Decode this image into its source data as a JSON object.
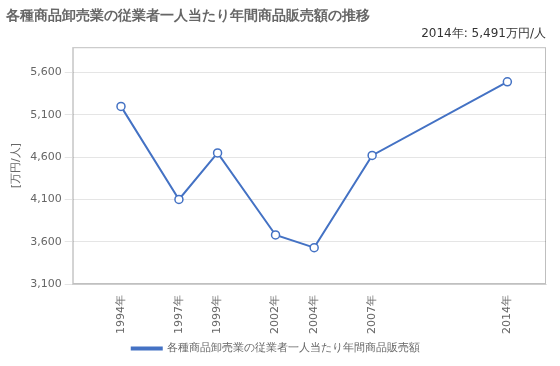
{
  "chart_data": {
    "type": "line",
    "title": "各種商品卸売業の従業者一人当たり年間商品販売額の推移",
    "annotation": "2014年: 5,491万円/人",
    "ylabel": "[万円/人]",
    "x": [
      1994,
      1997,
      1999,
      2002,
      2004,
      2007,
      2014
    ],
    "series": [
      {
        "name": "各種商品卸売業の従業者一人当たり年間商品販売額",
        "color": "#4472C4",
        "marker": "circle",
        "line_style": "solid",
        "values": [
          5200,
          4100,
          4650,
          3680,
          3530,
          4620,
          5491
        ]
      }
    ],
    "xlim": [
      1991.5,
      2016
    ],
    "xticks": [
      {
        "value": 1994,
        "label": "1994年"
      },
      {
        "value": 1997,
        "label": "1997年"
      },
      {
        "value": 1999,
        "label": "1999年"
      },
      {
        "value": 2002,
        "label": "2002年"
      },
      {
        "value": 2004,
        "label": "2004年"
      },
      {
        "value": 2007,
        "label": "2007年"
      },
      {
        "value": 2014,
        "label": "2014年"
      }
    ],
    "ylim": [
      3100,
      5900
    ],
    "yticks": [
      {
        "value": 3100,
        "label": "3,100"
      },
      {
        "value": 3600,
        "label": "3,600"
      },
      {
        "value": 4100,
        "label": "4,100"
      },
      {
        "value": 4600,
        "label": "4,600"
      },
      {
        "value": 5100,
        "label": "5,100"
      },
      {
        "value": 5600,
        "label": "5,600"
      }
    ],
    "grid": "y",
    "legend": "bottom"
  }
}
